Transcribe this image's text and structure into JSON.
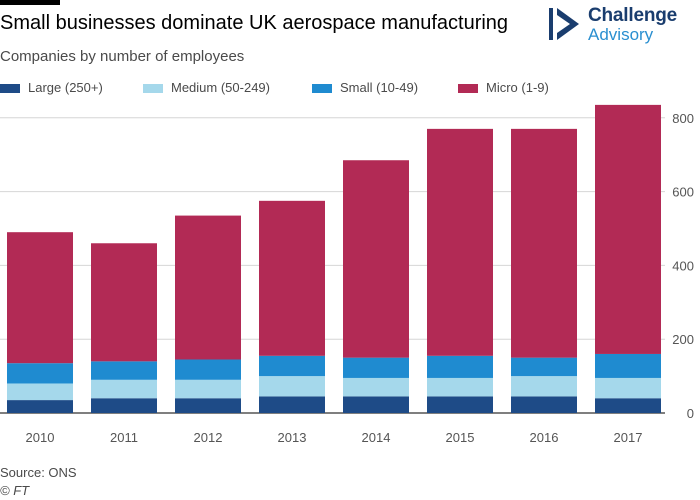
{
  "header": {
    "title": "Small businesses dominate UK aerospace manufacturing",
    "subtitle": "Companies by number of employees"
  },
  "logo": {
    "line1": "Challenge",
    "line2": "Advisory"
  },
  "footer": {
    "source": "Source: ONS",
    "copyright": "© FT"
  },
  "colors": {
    "large": "#1e4b87",
    "medium": "#a5d8eb",
    "small": "#1f8bd0",
    "micro": "#b22a55"
  },
  "chart_data": {
    "type": "bar",
    "stacked": true,
    "categories": [
      "2010",
      "2011",
      "2012",
      "2013",
      "2014",
      "2015",
      "2016",
      "2017"
    ],
    "series": [
      {
        "name": "Large (250+)",
        "values": [
          35,
          40,
          40,
          45,
          45,
          45,
          45,
          40
        ]
      },
      {
        "name": "Medium (50-249)",
        "values": [
          45,
          50,
          50,
          55,
          50,
          50,
          55,
          55
        ]
      },
      {
        "name": "Small (10-49)",
        "values": [
          55,
          50,
          55,
          55,
          55,
          60,
          50,
          65
        ]
      },
      {
        "name": "Micro (1-9)",
        "values": [
          355,
          320,
          390,
          420,
          535,
          615,
          620,
          675
        ]
      }
    ],
    "yticks": [
      0,
      200,
      400,
      600,
      800
    ],
    "ylim": [
      0,
      850
    ],
    "yaxis_position": "right",
    "grid": true,
    "legend_position": "top"
  }
}
